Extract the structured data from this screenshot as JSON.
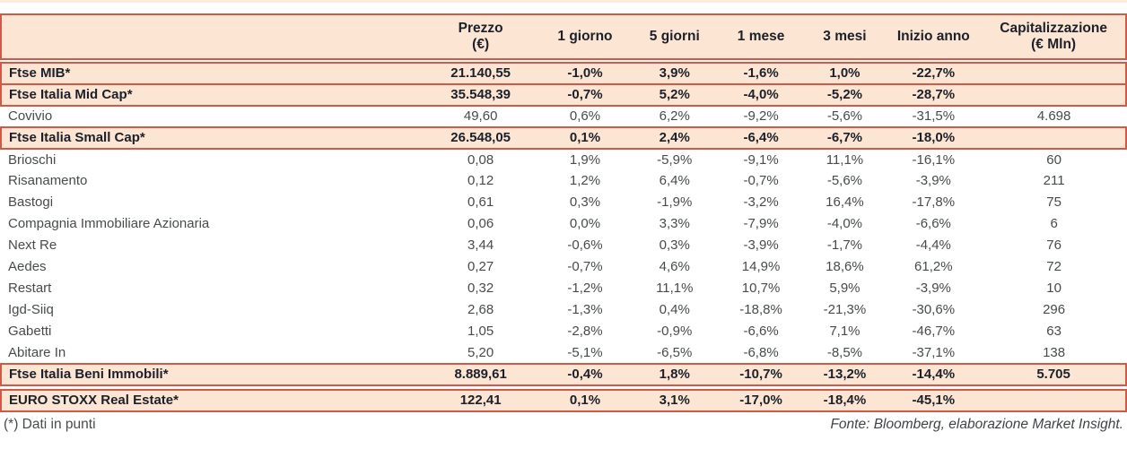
{
  "colors": {
    "peach": "#fce5d2",
    "line": "#cf5a48",
    "text-dark": "#1b202b",
    "text-gray": "#474b4c"
  },
  "table": {
    "columns": [
      {
        "label": ""
      },
      {
        "label": "Prezzo\n(€)"
      },
      {
        "label": "1 giorno"
      },
      {
        "label": "5 giorni"
      },
      {
        "label": "1 mese"
      },
      {
        "label": "3 mesi"
      },
      {
        "label": "Inizio anno"
      },
      {
        "label": "Capitalizzazione\n(€ Mln)"
      }
    ],
    "rows": [
      {
        "name": "Ftse MIB*",
        "style": "index",
        "values": [
          "21.140,55",
          "-1,0%",
          "3,9%",
          "-1,6%",
          "1,0%",
          "-22,7%",
          ""
        ]
      },
      {
        "name": "Ftse Italia Mid Cap*",
        "style": "index",
        "values": [
          "35.548,39",
          "-0,7%",
          "5,2%",
          "-4,0%",
          "-5,2%",
          "-28,7%",
          ""
        ]
      },
      {
        "name": "Covivio",
        "style": "stock",
        "values": [
          "49,60",
          "0,6%",
          "6,2%",
          "-9,2%",
          "-5,6%",
          "-31,5%",
          "4.698"
        ]
      },
      {
        "name": "Ftse Italia Small Cap*",
        "style": "index",
        "values": [
          "26.548,05",
          "0,1%",
          "2,4%",
          "-6,4%",
          "-6,7%",
          "-18,0%",
          ""
        ]
      },
      {
        "name": "Brioschi",
        "style": "stock",
        "values": [
          "0,08",
          "1,9%",
          "-5,9%",
          "-9,1%",
          "11,1%",
          "-16,1%",
          "60"
        ]
      },
      {
        "name": "Risanamento",
        "style": "stock",
        "values": [
          "0,12",
          "1,2%",
          "6,4%",
          "-0,7%",
          "-5,6%",
          "-3,9%",
          "211"
        ]
      },
      {
        "name": "Bastogi",
        "style": "stock",
        "values": [
          "0,61",
          "0,3%",
          "-1,9%",
          "-3,2%",
          "16,4%",
          "-17,8%",
          "75"
        ]
      },
      {
        "name": "Compagnia Immobiliare Azionaria",
        "style": "stock",
        "values": [
          "0,06",
          "0,0%",
          "3,3%",
          "-7,9%",
          "-4,0%",
          "-6,6%",
          "6"
        ]
      },
      {
        "name": "Next Re",
        "style": "stock",
        "values": [
          "3,44",
          "-0,6%",
          "0,3%",
          "-3,9%",
          "-1,7%",
          "-4,4%",
          "76"
        ]
      },
      {
        "name": "Aedes",
        "style": "stock",
        "values": [
          "0,27",
          "-0,7%",
          "4,6%",
          "14,9%",
          "18,6%",
          "61,2%",
          "72"
        ]
      },
      {
        "name": "Restart",
        "style": "stock",
        "values": [
          "0,32",
          "-1,2%",
          "11,1%",
          "10,7%",
          "5,9%",
          "-3,9%",
          "10"
        ]
      },
      {
        "name": "Igd-Siiq",
        "style": "stock",
        "values": [
          "2,68",
          "-1,3%",
          "0,4%",
          "-18,8%",
          "-21,3%",
          "-30,6%",
          "296"
        ]
      },
      {
        "name": "Gabetti",
        "style": "stock",
        "values": [
          "1,05",
          "-2,8%",
          "-0,9%",
          "-6,6%",
          "7,1%",
          "-46,7%",
          "63"
        ]
      },
      {
        "name": "Abitare In",
        "style": "stock",
        "values": [
          "5,20",
          "-5,1%",
          "-6,5%",
          "-6,8%",
          "-8,5%",
          "-37,1%",
          "138"
        ]
      },
      {
        "name": "Ftse Italia Beni Immobili*",
        "style": "index",
        "values": [
          "8.889,61",
          "-0,4%",
          "1,8%",
          "-10,7%",
          "-13,2%",
          "-14,4%",
          "5.705"
        ]
      },
      {
        "name": "EURO STOXX Real Estate*",
        "style": "index",
        "gap_before": true,
        "values": [
          "122,41",
          "0,1%",
          "3,1%",
          "-17,0%",
          "-18,4%",
          "-45,1%",
          ""
        ]
      }
    ]
  },
  "footer": {
    "left": "(*) Dati in punti",
    "right": "Fonte: Bloomberg, elaborazione Market Insight."
  }
}
